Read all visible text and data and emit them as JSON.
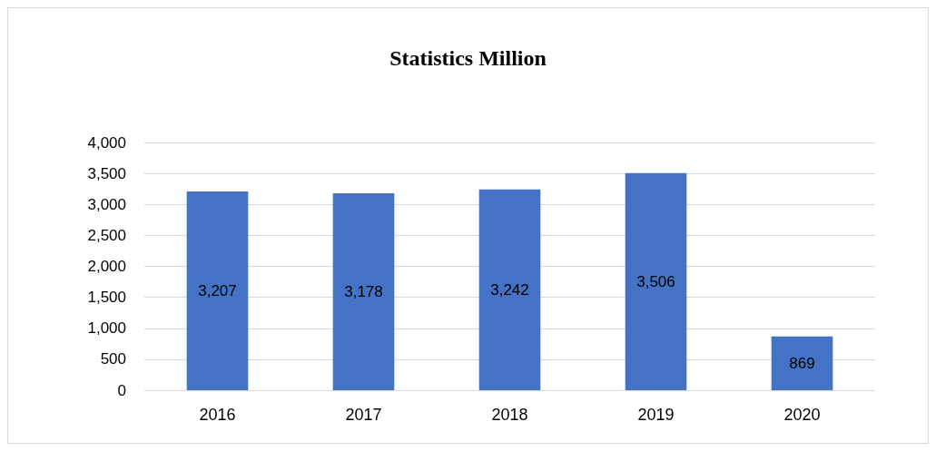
{
  "chart_data": {
    "type": "bar",
    "title": "Statistics Million",
    "categories": [
      "2016",
      "2017",
      "2018",
      "2019",
      "2020"
    ],
    "values": [
      3207,
      3178,
      3242,
      3506,
      869
    ],
    "value_labels": [
      "3,207",
      "3,178",
      "3,242",
      "3,506",
      "869"
    ],
    "color": "#4472c4",
    "ylim": [
      0,
      4000
    ],
    "yticks": [
      0,
      500,
      {
        "value": 1000,
        "label": "1,000"
      },
      {
        "value": 1500,
        "label": "1,500"
      },
      {
        "value": 2000,
        "label": "2,000"
      },
      {
        "value": 2500,
        "label": "2,500"
      },
      {
        "value": 3000,
        "label": "3,000"
      },
      {
        "value": 3500,
        "label": "3,500"
      },
      {
        "value": 4000,
        "label": "4,000"
      }
    ],
    "grid": true
  }
}
